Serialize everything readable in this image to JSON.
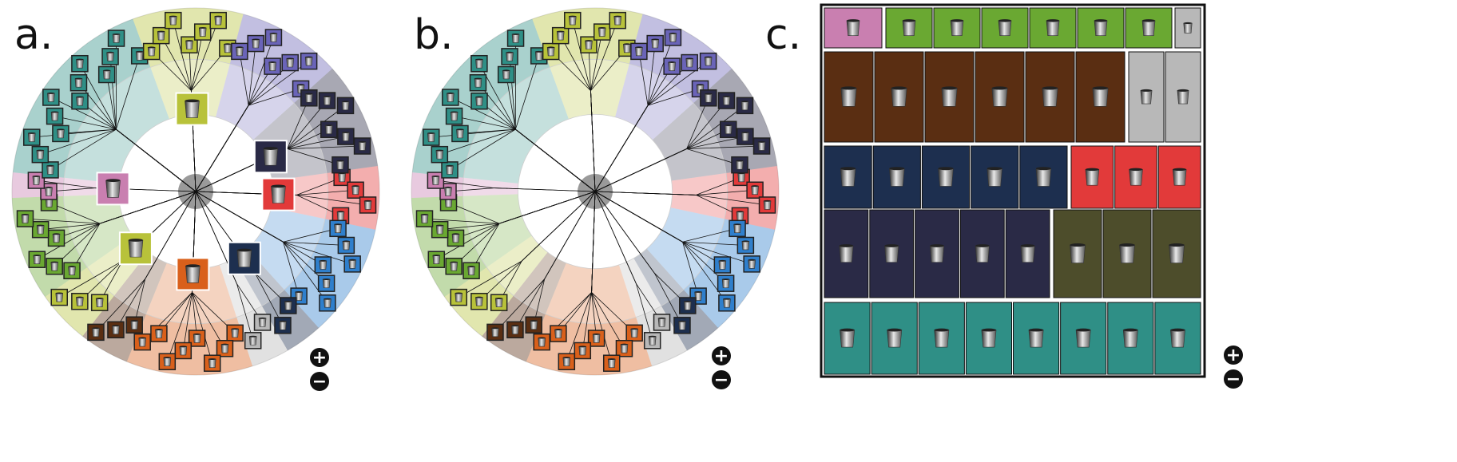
{
  "panels": {
    "a": {
      "label": "a."
    },
    "b": {
      "label": "b."
    },
    "c": {
      "label": "c."
    }
  },
  "controls": {
    "zoom_in_icon": "plus-icon",
    "zoom_out_icon": "minus-icon",
    "zoom_in_symbol": "+",
    "zoom_out_symbol": "−"
  },
  "palette": {
    "red": "#e23a3a",
    "blue": "#2f7fcc",
    "navy": "#1d2f4f",
    "slate": "#2a2a46",
    "purple": "#6a64b8",
    "olive": "#4d4d2b",
    "yellow": "#b8c23a",
    "teal": "#2f8f86",
    "green": "#6aa832",
    "orange": "#d9601b",
    "brown": "#5a2e12",
    "grey": "#b8b8b8",
    "pink": "#c97fb0"
  }
}
